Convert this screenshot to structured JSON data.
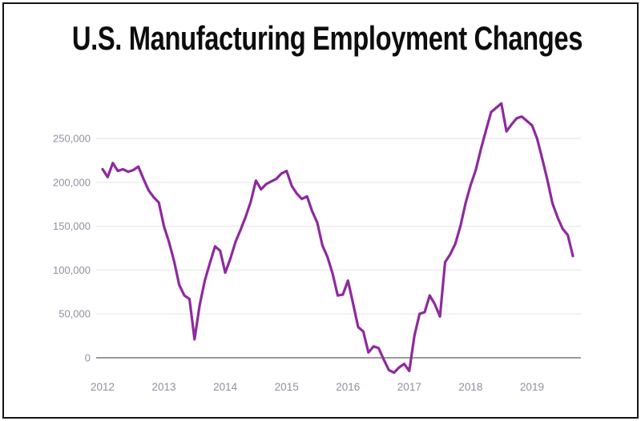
{
  "header": {
    "title": "U.S. Manufacturing Employment Changes"
  },
  "chart_style": {
    "line_color": "#8e2a9e",
    "grid_color": "#e8e8e8",
    "zero_axis_color": "#787878",
    "tick_label_color": "#958da0",
    "title_color": "#0d0d0d",
    "background_color": "#ffffff",
    "frame_color": "#141414"
  },
  "chart_data": {
    "type": "line",
    "title": "U.S. Manufacturing Employment Changes",
    "xlabel": "",
    "ylabel": "",
    "legend": "none",
    "grid": "horizontal",
    "ylim": [
      -25000,
      300000
    ],
    "y_tick_labels": [
      "0",
      "50,000",
      "100,000",
      "150,000",
      "200,000",
      "250,000"
    ],
    "x_tick_labels": [
      "2012",
      "2013",
      "2014",
      "2015",
      "2016",
      "2017",
      "2018",
      "2019"
    ],
    "x": [
      "2012-01",
      "2012-02",
      "2012-03",
      "2012-04",
      "2012-05",
      "2012-06",
      "2012-07",
      "2012-08",
      "2012-09",
      "2012-10",
      "2012-11",
      "2012-12",
      "2013-01",
      "2013-02",
      "2013-03",
      "2013-04",
      "2013-05",
      "2013-06",
      "2013-07",
      "2013-08",
      "2013-09",
      "2013-10",
      "2013-11",
      "2013-12",
      "2014-01",
      "2014-02",
      "2014-03",
      "2014-04",
      "2014-05",
      "2014-06",
      "2014-07",
      "2014-08",
      "2014-09",
      "2014-10",
      "2014-11",
      "2014-12",
      "2015-01",
      "2015-02",
      "2015-03",
      "2015-04",
      "2015-05",
      "2015-06",
      "2015-07",
      "2015-08",
      "2015-09",
      "2015-10",
      "2015-11",
      "2015-12",
      "2016-01",
      "2016-02",
      "2016-03",
      "2016-04",
      "2016-05",
      "2016-06",
      "2016-07",
      "2016-08",
      "2016-09",
      "2016-10",
      "2016-11",
      "2016-12",
      "2017-01",
      "2017-02",
      "2017-03",
      "2017-04",
      "2017-05",
      "2017-06",
      "2017-07",
      "2017-08",
      "2017-09",
      "2017-10",
      "2017-11",
      "2017-12",
      "2018-01",
      "2018-02",
      "2018-03",
      "2018-04",
      "2018-05",
      "2018-06",
      "2018-07",
      "2018-08",
      "2018-09",
      "2018-10",
      "2018-11",
      "2018-12",
      "2019-01",
      "2019-02",
      "2019-03",
      "2019-04",
      "2019-05",
      "2019-06",
      "2019-07",
      "2019-08",
      "2019-09"
    ],
    "values": [
      215000,
      206000,
      222000,
      213000,
      215000,
      212000,
      214000,
      218000,
      204000,
      191000,
      183000,
      177000,
      150000,
      132000,
      110000,
      83000,
      71000,
      67000,
      21000,
      60000,
      88000,
      108000,
      127000,
      122000,
      97000,
      113000,
      132000,
      146000,
      161000,
      178000,
      202000,
      192000,
      198000,
      201000,
      204000,
      210000,
      213000,
      196000,
      187000,
      181000,
      184000,
      167000,
      154000,
      128000,
      115000,
      96000,
      71000,
      72000,
      88000,
      62000,
      35000,
      30000,
      6000,
      13000,
      11000,
      -2000,
      -14000,
      -17000,
      -11000,
      -7000,
      -15000,
      25000,
      50000,
      52000,
      71000,
      61000,
      47000,
      109000,
      118000,
      130000,
      150000,
      176000,
      197000,
      214000,
      238000,
      259000,
      280000,
      285000,
      290000,
      258000,
      266000,
      273000,
      275000,
      270000,
      265000,
      250000,
      227000,
      203000,
      176000,
      160000,
      147000,
      140000,
      116000
    ]
  }
}
